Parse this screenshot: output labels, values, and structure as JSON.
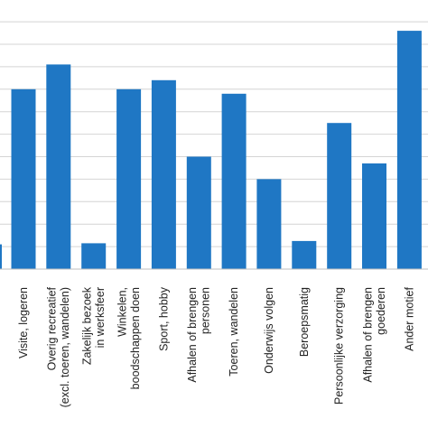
{
  "chart_data": {
    "type": "bar",
    "title": "",
    "xlabel": "",
    "ylabel": "",
    "grid": true,
    "bar_color": "#1f77c4",
    "grid_color": "#d4d4d4",
    "categories": [
      [
        "Visite, logeren"
      ],
      [
        "Overig recreatief",
        "(excl. toeren, wandelen)"
      ],
      [
        "Zakelijk bezoek",
        "in werksfeer"
      ],
      [
        "Winkelen,",
        "boodschappen doen"
      ],
      [
        "Sport, hobby"
      ],
      [
        "Afhalen of brengen",
        "personen"
      ],
      [
        "Toeren, wandelen"
      ],
      [
        "Onderwijs volgen"
      ],
      [
        "Beroepsmatig"
      ],
      [
        "Persoonlijke verzorging"
      ],
      [
        "Afhalen of brengen",
        "goederen"
      ],
      [
        "Ander motief"
      ]
    ],
    "values": [
      8.0,
      9.1,
      1.15,
      8.0,
      8.4,
      5.0,
      7.8,
      4.0,
      1.25,
      6.5,
      4.7,
      10.6
    ],
    "ylim": [
      0,
      12
    ],
    "partial_left_bar": 1.1
  }
}
